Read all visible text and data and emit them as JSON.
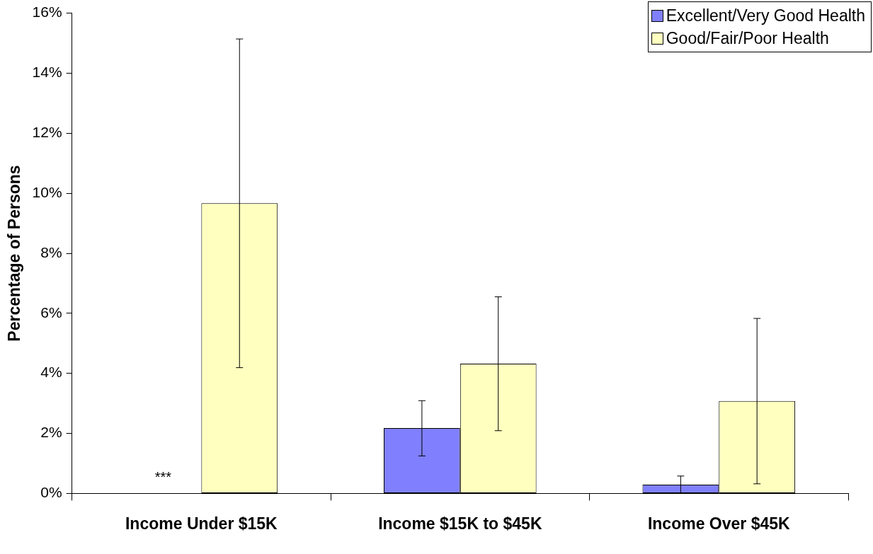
{
  "chart_data": {
    "type": "bar",
    "ylabel": "Percentage of Persons",
    "categories": [
      "Income Under $15K",
      "Income $15K to $45K",
      "Income Over $45K"
    ],
    "series": [
      {
        "name": "Excellent/Very Good Health",
        "color": "#8080ff",
        "values": [
          0,
          2.18,
          0.29
        ],
        "errors": [
          null,
          [
            1.25,
            3.09
          ],
          [
            0,
            0.58
          ]
        ]
      },
      {
        "name": "Good/Fair/Poor Health",
        "color": "#ffffc0",
        "values": [
          9.67,
          4.32,
          3.08
        ],
        "errors": [
          [
            4.19,
            15.14
          ],
          [
            2.09,
            6.55
          ],
          [
            0.32,
            5.83
          ]
        ]
      }
    ],
    "ylim": [
      0,
      16
    ],
    "yticks": [
      {
        "value": 0,
        "label": "0%"
      },
      {
        "value": 2,
        "label": "2%"
      },
      {
        "value": 4,
        "label": "4%"
      },
      {
        "value": 6,
        "label": "6%"
      },
      {
        "value": 8,
        "label": "8%"
      },
      {
        "value": 10,
        "label": "10%"
      },
      {
        "value": 12,
        "label": "12%"
      },
      {
        "value": 14,
        "label": "14%"
      },
      {
        "value": 16,
        "label": "16%"
      }
    ],
    "annotations": [
      {
        "text": "***",
        "x": "Income Under $15K",
        "y": 0
      }
    ],
    "legend": "top right",
    "grid": false
  }
}
